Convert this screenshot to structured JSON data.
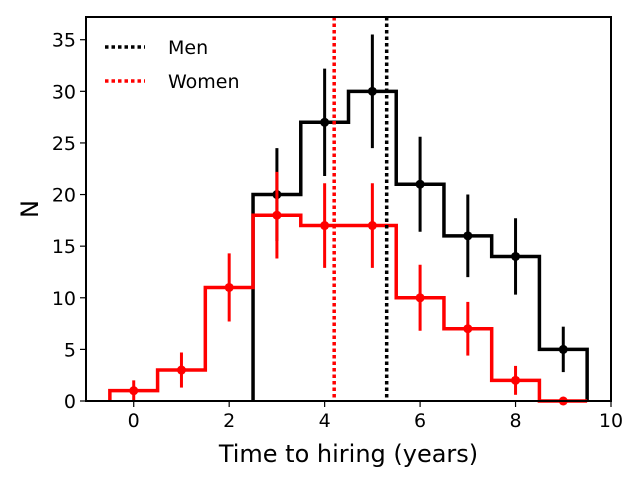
{
  "chart_data": {
    "type": "histogram",
    "xlabel": "Time to hiring (years)",
    "ylabel": "N",
    "xlim": [
      -1,
      10
    ],
    "ylim": [
      0,
      37.2
    ],
    "xticks": [
      0,
      2,
      4,
      6,
      8,
      10
    ],
    "yticks": [
      0,
      5,
      10,
      15,
      20,
      25,
      30,
      35
    ],
    "grid": false,
    "legend_position": "top-left",
    "series": [
      {
        "name": "Men",
        "color": "#000000",
        "bins": [
          2.5,
          3.5,
          4.5,
          5.5,
          6.5,
          7.5,
          8.5,
          9.5
        ],
        "x": [
          3,
          4,
          5,
          6,
          7,
          8,
          9
        ],
        "values": [
          20,
          27,
          30,
          21,
          16,
          14,
          5
        ],
        "errors": [
          4.5,
          5.2,
          5.5,
          4.6,
          4.0,
          3.7,
          2.2
        ],
        "mean_line": 5.3
      },
      {
        "name": "Women",
        "color": "#ff0000",
        "bins": [
          -0.5,
          0.5,
          1.5,
          2.5,
          3.5,
          4.5,
          5.5,
          6.5,
          7.5,
          8.5,
          9.5
        ],
        "x": [
          0,
          1,
          2,
          3,
          4,
          5,
          6,
          7,
          8,
          9
        ],
        "values": [
          1,
          3,
          11,
          18,
          17,
          17,
          10,
          7,
          2,
          0
        ],
        "errors": [
          1.0,
          1.7,
          3.3,
          4.2,
          4.1,
          4.1,
          3.2,
          2.6,
          1.4,
          0
        ],
        "mean_line": 4.2
      }
    ]
  }
}
